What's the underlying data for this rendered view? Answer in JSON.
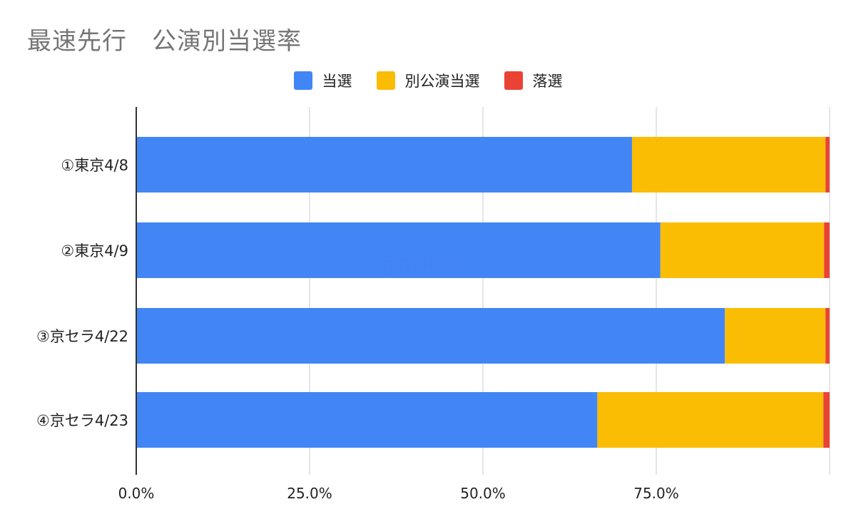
{
  "title": "最速先行　公演別当選率",
  "watermark": "@rrrinxxx",
  "colors": {
    "当選": "#4285f4",
    "別公演当選": "#fbbc04",
    "落選": "#ea4335",
    "grid": "#cccccc",
    "axis": "#333333"
  },
  "chart_data": {
    "type": "bar",
    "orientation": "horizontal",
    "stacked": "percent",
    "title": "最速先行　公演別当選率",
    "categories": [
      "①東京4/8",
      "②東京4/9",
      "③京セラ4/22",
      "④京セラ4/23"
    ],
    "series": [
      {
        "name": "当選",
        "values": [
          71.5,
          75.6,
          84.9,
          66.5
        ]
      },
      {
        "name": "別公演当選",
        "values": [
          27.9,
          23.6,
          14.5,
          32.6
        ]
      },
      {
        "name": "落選",
        "values": [
          0.6,
          0.8,
          0.6,
          0.9
        ]
      }
    ],
    "xlim": [
      0,
      100
    ],
    "xticks": [
      "0.0%",
      "25.0%",
      "50.0%",
      "75.0%"
    ],
    "grid": true,
    "legend_position": "top"
  }
}
